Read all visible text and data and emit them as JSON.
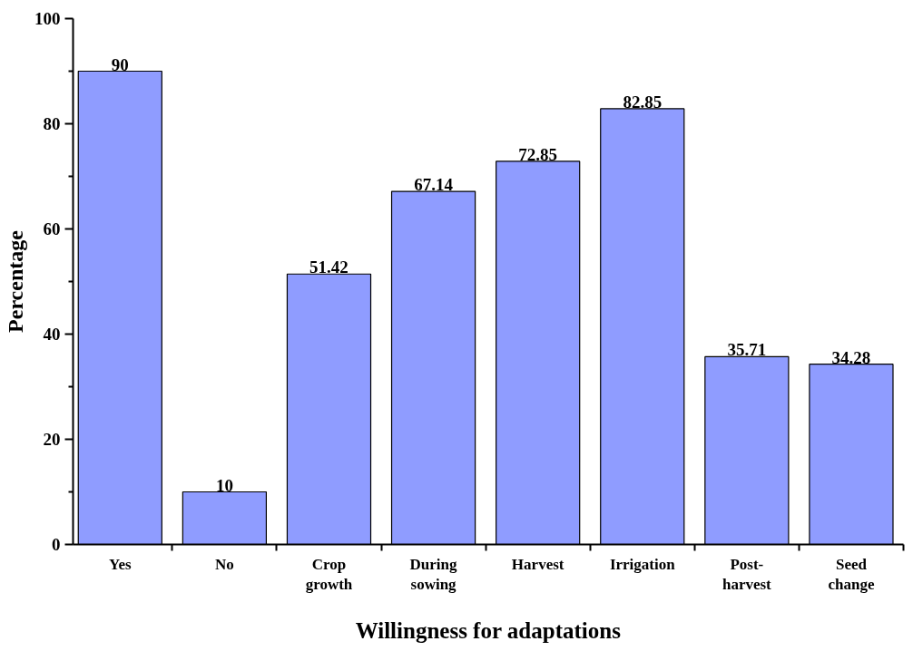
{
  "chart_data": {
    "type": "bar",
    "xlabel": "Willingness for adaptations",
    "ylabel": "Percentage",
    "categories": [
      "Yes",
      "No",
      "Crop\ngrowth",
      "During\nsowing",
      "Harvest",
      "Irrigation",
      "Post-\nharvest",
      "Seed\nchange"
    ],
    "values": [
      90,
      10,
      51.42,
      67.14,
      72.85,
      82.85,
      35.71,
      34.28
    ],
    "color": "#8f9cff",
    "ylim": [
      0,
      100
    ],
    "yticks": [
      0,
      20,
      40,
      60,
      80,
      100
    ],
    "grid": false,
    "data_labels": true
  }
}
